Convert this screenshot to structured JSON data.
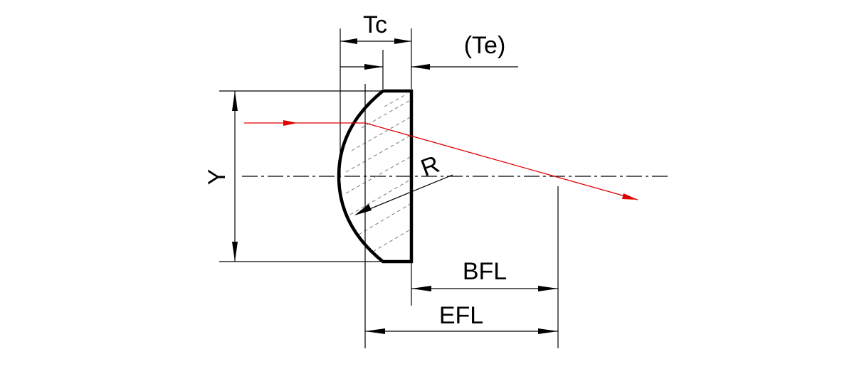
{
  "diagram": {
    "labels": {
      "center_thickness": "Tc",
      "edge_thickness": "(Te)",
      "height": "Y",
      "radius": "R",
      "back_focal_length": "BFL",
      "effective_focal_length": "EFL"
    },
    "colors": {
      "lines": "#000000",
      "ray": "#e00000",
      "hatch": "#7a7a7a",
      "background": "#ffffff"
    }
  }
}
